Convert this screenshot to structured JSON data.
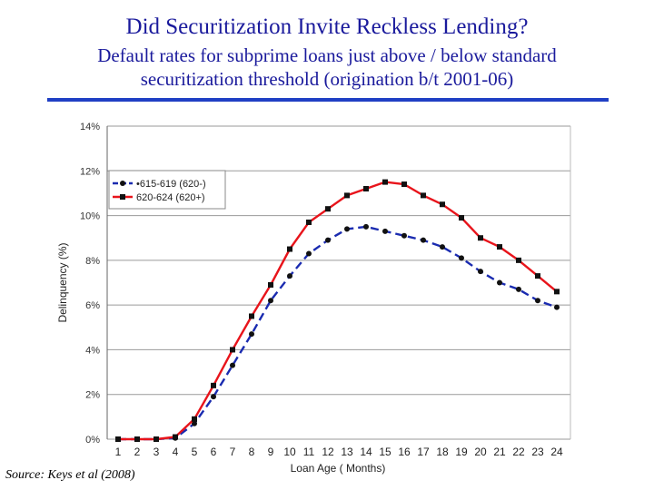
{
  "header": {
    "title": "Did Securitization Invite Reckless Lending?",
    "subtitle_line1": "Default rates for subprime loans just above / below standard",
    "subtitle_line2": "securitization threshold (origination b/t 2001-06)"
  },
  "footer": {
    "source": "Source: Keys et al (2008)"
  },
  "colors": {
    "series_above": "#e8141b",
    "series_below": "#1a2bb0",
    "title": "#1a1a9c",
    "rule": "#1f3fc4"
  },
  "chart_data": {
    "type": "line",
    "title": "",
    "xlabel": "Loan Age ( Months)",
    "ylabel": "Delinquency (%)",
    "ylim": [
      0,
      14
    ],
    "yticks": [
      0,
      2,
      4,
      6,
      8,
      10,
      12,
      14
    ],
    "ytick_labels": [
      "0%",
      "2%",
      "4%",
      "6%",
      "8%",
      "10%",
      "12%",
      "14%"
    ],
    "x": [
      1,
      2,
      3,
      4,
      5,
      6,
      7,
      8,
      9,
      10,
      11,
      12,
      13,
      14,
      15,
      16,
      17,
      18,
      19,
      20,
      21,
      22,
      23,
      24
    ],
    "x_labels": [
      "1",
      "2",
      "3",
      "4",
      "5",
      "6",
      "7",
      "8",
      "9",
      "10",
      "11",
      "12",
      "13",
      "14",
      "15",
      "16",
      "17",
      "18",
      "19",
      "20",
      "21",
      "22",
      "23",
      "24"
    ],
    "grid": true,
    "legend_position": "top-left",
    "series": [
      {
        "name": "615-619 (620-)",
        "legend_label": "•615-619 (620-)",
        "style": "dashed",
        "marker": "circle",
        "color": "#1a2bb0",
        "values": [
          0,
          0,
          0,
          0.05,
          0.7,
          1.9,
          3.3,
          4.7,
          6.2,
          7.3,
          8.3,
          8.9,
          9.4,
          9.5,
          9.3,
          9.1,
          8.9,
          8.6,
          8.1,
          7.5,
          7.0,
          6.7,
          6.2,
          5.9
        ]
      },
      {
        "name": "620-624 (620+)",
        "legend_label": "620-624 (620+)",
        "style": "solid",
        "marker": "square",
        "color": "#e8141b",
        "values": [
          0,
          0,
          0,
          0.1,
          0.9,
          2.4,
          4.0,
          5.5,
          6.9,
          8.5,
          9.7,
          10.3,
          10.9,
          11.2,
          11.5,
          11.4,
          10.9,
          10.5,
          9.9,
          9.0,
          8.6,
          8.0,
          7.3,
          6.6
        ]
      }
    ]
  }
}
